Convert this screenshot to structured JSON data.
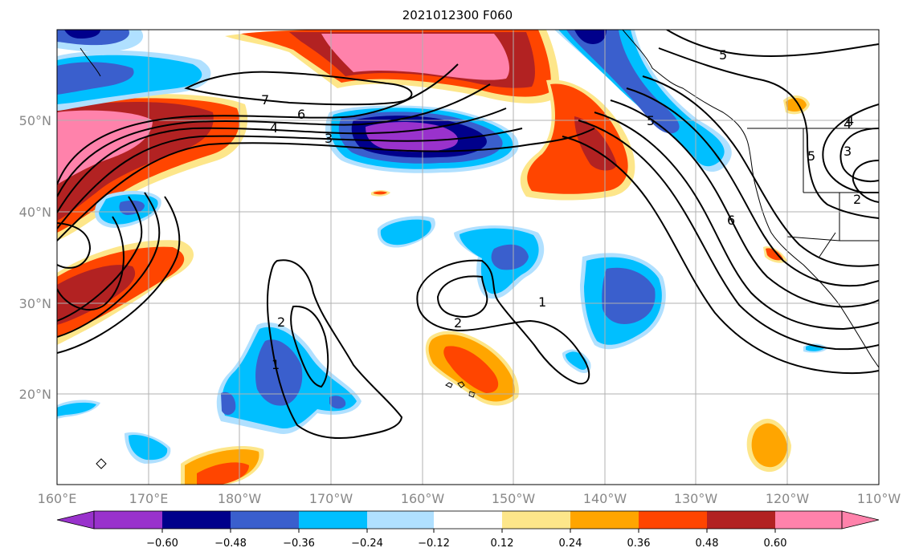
{
  "title": "2021012300 F060",
  "lon_labels": [
    "160°E",
    "170°E",
    "180°W",
    "170°W",
    "160°W",
    "150°W",
    "140°W",
    "130°W",
    "120°W",
    "110°W"
  ],
  "lat_labels": [
    "50°N",
    "40°N",
    "30°N",
    "20°N"
  ],
  "contour_labels": [
    "7",
    "6",
    "5",
    "4",
    "3",
    "2",
    "1",
    "5",
    "4",
    "6",
    "5",
    "4",
    "3",
    "2",
    "2",
    "1"
  ],
  "colorbar": {
    "ticks": [
      "−0.60",
      "−0.48",
      "−0.36",
      "−0.24",
      "−0.12",
      "0.12",
      "0.24",
      "0.36",
      "0.48",
      "0.60"
    ],
    "colors": [
      "#9932cc",
      "#00008b",
      "#3a5fcd",
      "#00bfff",
      "#b0e0ff",
      "#ffffff",
      "#fde68a",
      "#ffa500",
      "#ff4500",
      "#b22222",
      "#ff82ab"
    ]
  },
  "palette": {
    "pink": "#ff82ab",
    "darkred": "#b22222",
    "orangered": "#ff4500",
    "orange": "#ffa500",
    "yellow": "#fde68a",
    "lightblue": "#b0e0ff",
    "skyblue": "#00bfff",
    "royalblue": "#3a5fcd",
    "navy": "#00008b",
    "purple": "#9932cc"
  }
}
